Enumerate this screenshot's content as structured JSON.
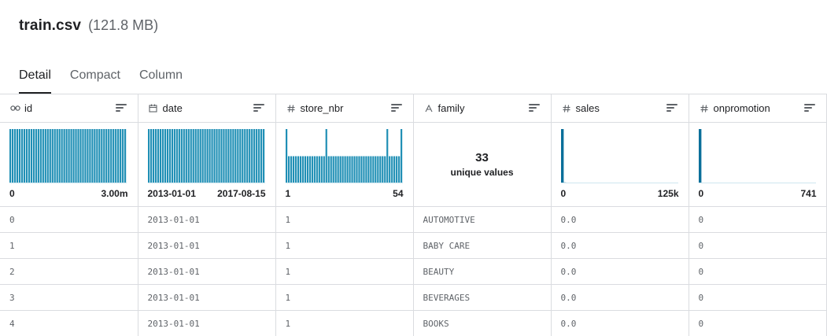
{
  "file": {
    "name": "train.csv",
    "size": "(121.8 MB)"
  },
  "tabs": [
    {
      "label": "Detail",
      "active": true
    },
    {
      "label": "Compact",
      "active": false
    },
    {
      "label": "Column",
      "active": false
    }
  ],
  "columns": [
    {
      "name": "id",
      "type_icon": "key-icon",
      "summary": {
        "kind": "histogram",
        "min_label": "0",
        "max_label": "3.00m",
        "bars": [
          1,
          1,
          1,
          1,
          1,
          1,
          1,
          1,
          1,
          1,
          1,
          1,
          1,
          1,
          1,
          1,
          1,
          1,
          1,
          1,
          1,
          1,
          1,
          1,
          1,
          1,
          1,
          1,
          1,
          1,
          1,
          1,
          1,
          1,
          1,
          1,
          1,
          1,
          1,
          1,
          1,
          1,
          1,
          1,
          1,
          1,
          1,
          1,
          1,
          1
        ]
      }
    },
    {
      "name": "date",
      "type_icon": "calendar-icon",
      "summary": {
        "kind": "histogram",
        "min_label": "2013-01-01",
        "max_label": "2017-08-15",
        "bars": [
          1,
          1,
          1,
          1,
          1,
          1,
          1,
          1,
          1,
          1,
          1,
          1,
          1,
          1,
          1,
          1,
          1,
          1,
          1,
          1,
          1,
          1,
          1,
          1,
          1,
          1,
          1,
          1,
          1,
          1,
          1,
          1,
          1,
          1,
          1,
          1,
          1,
          1,
          1,
          1,
          1,
          1,
          1,
          1,
          1,
          1,
          1,
          1,
          1,
          1
        ]
      }
    },
    {
      "name": "store_nbr",
      "type_icon": "hash-icon",
      "summary": {
        "kind": "histogram",
        "min_label": "1",
        "max_label": "54",
        "bars": [
          2,
          1,
          1,
          1,
          1,
          1,
          1,
          1,
          1,
          1,
          1,
          1,
          1,
          1,
          1,
          1,
          1,
          2,
          1,
          1,
          1,
          1,
          1,
          1,
          1,
          1,
          1,
          1,
          1,
          1,
          1,
          1,
          1,
          1,
          1,
          1,
          1,
          1,
          1,
          1,
          1,
          1,
          1,
          2,
          1,
          1,
          1,
          1,
          1,
          2
        ]
      }
    },
    {
      "name": "family",
      "type_icon": "text-icon",
      "summary": {
        "kind": "unique",
        "count": "33",
        "label": "unique values"
      }
    },
    {
      "name": "sales",
      "type_icon": "hash-icon",
      "summary": {
        "kind": "histogram",
        "min_label": "0",
        "max_label": "125k",
        "bars": [
          100,
          1,
          0,
          0,
          0,
          0,
          0,
          0,
          0,
          0,
          0,
          0,
          0,
          0,
          0,
          0,
          0,
          0,
          0,
          0,
          0,
          0,
          0,
          0,
          0,
          0,
          0,
          0,
          0,
          0,
          0,
          0,
          0,
          0,
          0,
          0,
          0,
          0,
          0,
          0,
          0,
          0,
          0,
          0,
          0,
          0,
          0,
          0,
          0,
          0
        ]
      }
    },
    {
      "name": "onpromotion",
      "type_icon": "hash-icon",
      "summary": {
        "kind": "histogram",
        "min_label": "0",
        "max_label": "741",
        "bars": [
          100,
          0,
          0,
          0,
          0,
          0,
          0,
          0,
          0,
          0,
          0,
          0,
          0,
          0,
          0,
          0,
          0,
          0,
          0,
          0,
          0,
          0,
          0,
          0,
          0,
          0,
          0,
          0,
          0,
          0,
          0,
          0,
          0,
          0,
          0,
          0,
          0,
          0,
          0,
          0,
          0,
          0,
          0,
          0,
          0,
          0,
          0,
          0,
          0,
          0
        ]
      }
    }
  ],
  "rows": [
    [
      "0",
      "2013-01-01",
      "1",
      "AUTOMOTIVE",
      "0.0",
      "0"
    ],
    [
      "1",
      "2013-01-01",
      "1",
      "BABY CARE",
      "0.0",
      "0"
    ],
    [
      "2",
      "2013-01-01",
      "1",
      "BEAUTY",
      "0.0",
      "0"
    ],
    [
      "3",
      "2013-01-01",
      "1",
      "BEVERAGES",
      "0.0",
      "0"
    ],
    [
      "4",
      "2013-01-01",
      "1",
      "BOOKS",
      "0.0",
      "0"
    ]
  ],
  "colors": {
    "bar": "#1f8fb5",
    "bar_dark": "#0a6f9a",
    "border": "#dadce0",
    "text": "#202124",
    "muted": "#5f6368"
  }
}
